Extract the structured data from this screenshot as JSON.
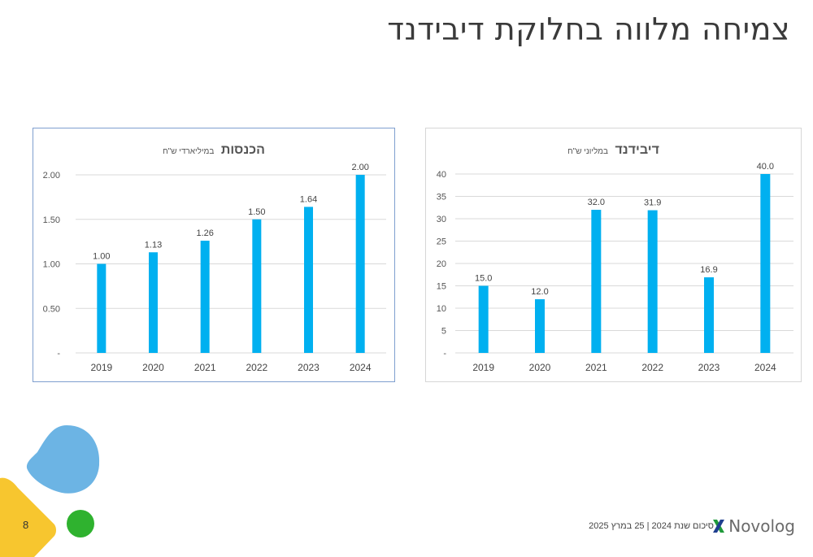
{
  "slide": {
    "title": "צמיחה מלווה בחלוקת דיבידנד",
    "page_number": "8",
    "footer_text": "סיכום שנת 2024 | 25 במרץ 2025",
    "logo_text": "Novolog"
  },
  "colors": {
    "bar": "#00b0f0",
    "grid": "#d9d9d9",
    "blue_blob": "#6cb4e4",
    "yellow_shape": "#f7c62f",
    "green_dot": "#2fb22f"
  },
  "chart_data": [
    {
      "type": "bar",
      "title": "הכנסות",
      "subtitle": "במיליארדי ש\"ח",
      "categories": [
        "2019",
        "2020",
        "2021",
        "2022",
        "2023",
        "2024"
      ],
      "values": [
        1.0,
        1.13,
        1.26,
        1.5,
        1.64,
        2.0
      ],
      "value_labels": [
        "1.00",
        "1.13",
        "1.26",
        "1.50",
        "1.64",
        "2.00"
      ],
      "ylim": [
        0,
        2.0
      ],
      "yticks": [
        0,
        0.5,
        1.0,
        1.5,
        2.0
      ],
      "ytick_labels": [
        "-",
        "0.50",
        "1.00",
        "1.50",
        "2.00"
      ],
      "grid": true,
      "xlabel": "",
      "ylabel": ""
    },
    {
      "type": "bar",
      "title": "דיבידנד",
      "subtitle": "במליוני ש\"ח",
      "categories": [
        "2019",
        "2020",
        "2021",
        "2022",
        "2023",
        "2024"
      ],
      "values": [
        15.0,
        12.0,
        32.0,
        31.9,
        16.9,
        40.0
      ],
      "value_labels": [
        "15.0",
        "12.0",
        "32.0",
        "31.9",
        "16.9",
        "40.0"
      ],
      "ylim": [
        0,
        40
      ],
      "yticks": [
        0,
        5,
        10,
        15,
        20,
        25,
        30,
        35,
        40
      ],
      "ytick_labels": [
        "-",
        "5",
        "10",
        "15",
        "20",
        "25",
        "30",
        "35",
        "40"
      ],
      "grid": true,
      "xlabel": "",
      "ylabel": ""
    }
  ]
}
